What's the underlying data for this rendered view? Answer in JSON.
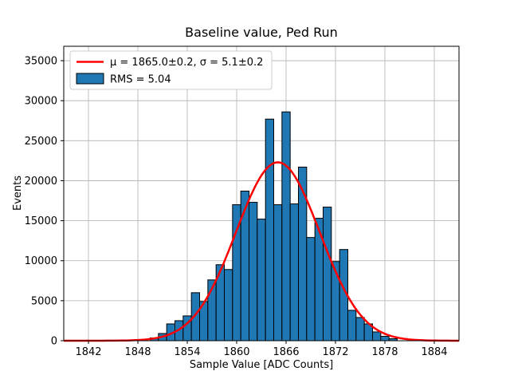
{
  "chart_data": {
    "type": "histogram",
    "title": "Baseline value, Ped Run",
    "xlabel": "Sample Value [ADC Counts]",
    "ylabel": "Events",
    "xlim": [
      1839,
      1887
    ],
    "ylim": [
      0,
      36800
    ],
    "xticks": [
      1842,
      1848,
      1854,
      1860,
      1866,
      1872,
      1878,
      1884
    ],
    "yticks": [
      0,
      5000,
      10000,
      15000,
      20000,
      25000,
      30000,
      35000
    ],
    "grid": true,
    "legend_position": "upper-left",
    "bin_width": 1,
    "bins": [
      {
        "x": 1850,
        "count": 350
      },
      {
        "x": 1851,
        "count": 900
      },
      {
        "x": 1852,
        "count": 2100
      },
      {
        "x": 1853,
        "count": 2500
      },
      {
        "x": 1854,
        "count": 3100
      },
      {
        "x": 1855,
        "count": 6000
      },
      {
        "x": 1856,
        "count": 4900
      },
      {
        "x": 1857,
        "count": 7600
      },
      {
        "x": 1858,
        "count": 9500
      },
      {
        "x": 1859,
        "count": 8900
      },
      {
        "x": 1860,
        "count": 17000
      },
      {
        "x": 1861,
        "count": 18700
      },
      {
        "x": 1862,
        "count": 17300
      },
      {
        "x": 1863,
        "count": 15200
      },
      {
        "x": 1864,
        "count": 27700
      },
      {
        "x": 1865,
        "count": 17000
      },
      {
        "x": 1866,
        "count": 28600
      },
      {
        "x": 1867,
        "count": 17100
      },
      {
        "x": 1868,
        "count": 21700
      },
      {
        "x": 1869,
        "count": 12900
      },
      {
        "x": 1870,
        "count": 15300
      },
      {
        "x": 1871,
        "count": 16700
      },
      {
        "x": 1872,
        "count": 9900
      },
      {
        "x": 1873,
        "count": 11400
      },
      {
        "x": 1874,
        "count": 3800
      },
      {
        "x": 1875,
        "count": 2900
      },
      {
        "x": 1876,
        "count": 2100
      },
      {
        "x": 1877,
        "count": 1100
      },
      {
        "x": 1878,
        "count": 550
      },
      {
        "x": 1879,
        "count": 250
      }
    ],
    "gaussian": {
      "amplitude": 22300,
      "mu": 1865.0,
      "sigma": 5.1
    },
    "legend": [
      {
        "type": "line",
        "label": "μ = 1865.0±0.2, σ = 5.1±0.2"
      },
      {
        "type": "patch",
        "label": "RMS = 5.04"
      }
    ],
    "colors": {
      "bar": "#1f77b4",
      "bar_edge": "#000000",
      "curve": "#ff0000",
      "grid": "#b0b0b0",
      "frame": "#000000",
      "legend_edge": "#cccccc",
      "background": "#ffffff"
    }
  }
}
